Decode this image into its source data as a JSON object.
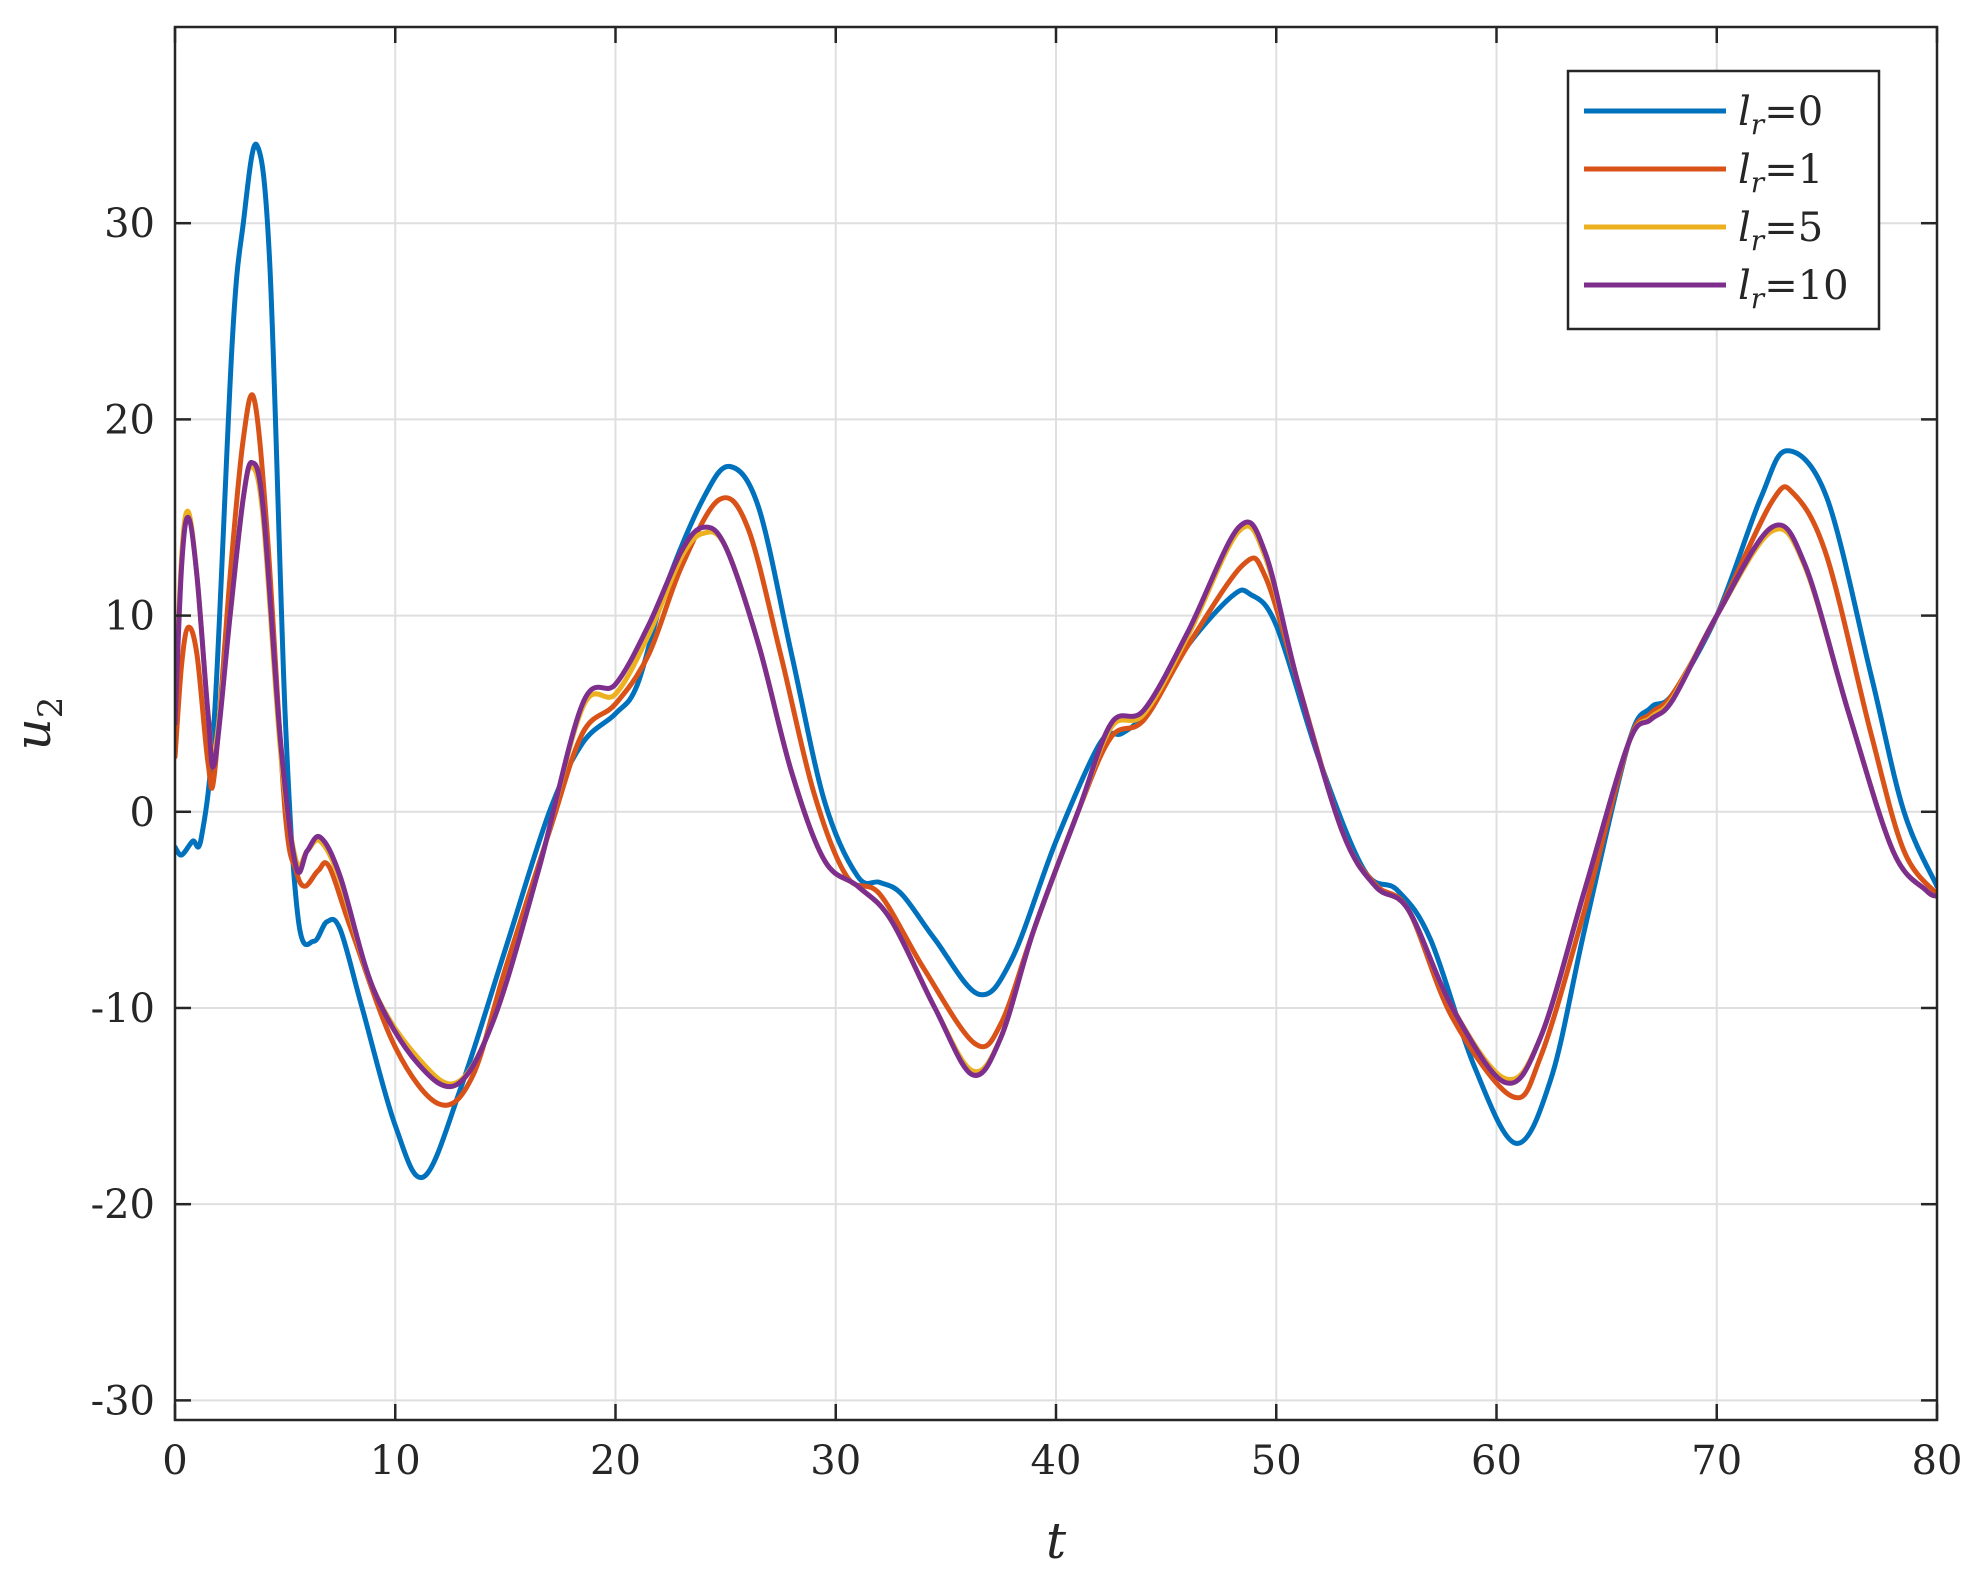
{
  "chart_data": {
    "type": "line",
    "xlabel": "t",
    "ylabel": "u",
    "ylabel_sub": "2",
    "xlim": [
      0,
      80
    ],
    "ylim": [
      -31,
      40
    ],
    "xticks": [
      0,
      10,
      20,
      30,
      40,
      50,
      60,
      70,
      80
    ],
    "yticks": [
      -30,
      -20,
      -10,
      0,
      10,
      20,
      30
    ],
    "xtick_labels": [
      "0",
      "10",
      "20",
      "30",
      "40",
      "50",
      "60",
      "70",
      "80"
    ],
    "ytick_labels": [
      "-30",
      "-20",
      "-10",
      "0",
      "10",
      "20",
      "30"
    ],
    "grid": true,
    "legend_position": "top-right",
    "series": [
      {
        "name": "=0",
        "name_var": "l",
        "name_sub": "r",
        "color": "#0072BD",
        "x": [
          0,
          0.3,
          0.8,
          1.2,
          1.8,
          2.6,
          3.1,
          3.7,
          4.3,
          5.0,
          5.6,
          6.3,
          6.9,
          7.5,
          8.5,
          10.0,
          11.3,
          13.0,
          15.0,
          17.0,
          18.5,
          20.0,
          21.0,
          22.3,
          24.0,
          25.2,
          26.5,
          28.0,
          29.5,
          31.0,
          32.0,
          33.0,
          34.5,
          36.5,
          38.0,
          40.0,
          42.0,
          43.0,
          44.0,
          46.0,
          48.0,
          48.8,
          50.0,
          52.0,
          54.0,
          55.5,
          57.0,
          59.0,
          60.9,
          62.5,
          64.0,
          66.0,
          67.0,
          68.0,
          70.0,
          72.0,
          73.2,
          75.0,
          77.0,
          78.5,
          80.0
        ],
        "y": [
          -1.8,
          -2.2,
          -1.5,
          -1.3,
          5,
          24,
          30,
          34,
          28,
          5,
          -5.5,
          -6.6,
          -5.6,
          -6,
          -10,
          -16,
          -18.6,
          -14,
          -7,
          0,
          3.5,
          5,
          6.5,
          11.5,
          16,
          17.6,
          15.5,
          8,
          0.5,
          -3.3,
          -3.6,
          -4.2,
          -6.5,
          -9.3,
          -7.5,
          -1.5,
          3.5,
          4,
          5,
          8.5,
          11,
          11.1,
          9.5,
          2.5,
          -3,
          -4,
          -6.5,
          -13,
          -16.9,
          -13.5,
          -6,
          3.5,
          5.3,
          6,
          10,
          16,
          18.4,
          16,
          7,
          0,
          -3.8
        ]
      },
      {
        "name": "=1",
        "name_var": "l",
        "name_sub": "r",
        "color": "#D95319",
        "x": [
          0,
          0.3,
          0.6,
          1.0,
          1.5,
          1.8,
          2.5,
          3.1,
          3.6,
          4.2,
          5.0,
          5.5,
          5.9,
          6.5,
          7.0,
          8.0,
          10.0,
          12.0,
          13.5,
          15.0,
          17.0,
          18.5,
          20.0,
          21.5,
          23.0,
          24.7,
          26.0,
          27.5,
          29.0,
          30.5,
          32.0,
          34.0,
          36.3,
          37.5,
          39.0,
          41.0,
          42.5,
          44.0,
          46.0,
          48.5,
          49.5,
          51.0,
          53.0,
          54.5,
          56.0,
          58.0,
          60.7,
          62.0,
          64.0,
          66.0,
          67.0,
          68.0,
          70.0,
          72.5,
          73.5,
          75.0,
          77.0,
          78.5,
          80.0
        ],
        "y": [
          2.8,
          7.5,
          9.4,
          8,
          2.5,
          2,
          12,
          19,
          21,
          14,
          0,
          -3,
          -3.8,
          -3,
          -2.8,
          -6,
          -12,
          -14.9,
          -13.5,
          -8,
          -1,
          4,
          5.5,
          8,
          12.5,
          15.9,
          14.5,
          8,
          1,
          -3.3,
          -4.2,
          -8,
          -11.8,
          -10.8,
          -6,
          0,
          3.8,
          4.7,
          8.5,
          12.6,
          12,
          6.5,
          -1,
          -3.7,
          -5,
          -10.5,
          -14.5,
          -12.5,
          -5,
          3.5,
          5,
          6,
          10,
          15.8,
          16.2,
          13,
          4,
          -2,
          -4.2
        ]
      },
      {
        "name": "=5",
        "name_var": "l",
        "name_sub": "r",
        "color": "#EDB120",
        "x": [
          0,
          0.3,
          0.6,
          1.0,
          1.5,
          1.8,
          2.5,
          3.1,
          3.5,
          4.0,
          4.8,
          5.5,
          6.0,
          6.6,
          7.5,
          9.0,
          11.0,
          12.8,
          14.5,
          16.5,
          18.5,
          20.0,
          21.5,
          23.0,
          24.0,
          25.0,
          26.5,
          28.0,
          29.5,
          31.0,
          32.5,
          34.5,
          36.2,
          37.5,
          39.0,
          41.0,
          42.5,
          44.0,
          46.0,
          48.3,
          49.5,
          51.0,
          53.0,
          54.5,
          56.0,
          58.0,
          60.4,
          62.0,
          64.0,
          66.0,
          67.0,
          68.0,
          70.0,
          72.5,
          74.0,
          76.0,
          78.0,
          79.5,
          80.0
        ],
        "y": [
          5,
          13,
          15.3,
          12,
          5,
          3,
          10,
          16,
          17.6,
          15,
          3,
          -2.5,
          -2,
          -1.5,
          -3.5,
          -9,
          -12.5,
          -13.8,
          -10.5,
          -3,
          5.3,
          6,
          9,
          13,
          14.2,
          13.5,
          8.5,
          2,
          -2.5,
          -3.8,
          -5.5,
          -10,
          -13.2,
          -11.5,
          -6,
          0,
          4.3,
          5,
          9,
          14.3,
          13,
          6.5,
          -1,
          -3.8,
          -5,
          -10,
          -13.6,
          -11.5,
          -4,
          3.5,
          4.8,
          5.8,
          10,
          14.3,
          12.5,
          5,
          -2,
          -4,
          -4.3
        ]
      },
      {
        "name": "=10",
        "name_var": "l",
        "name_sub": "r",
        "color": "#7E2F8E",
        "x": [
          0,
          0.3,
          0.6,
          1.0,
          1.5,
          1.8,
          2.5,
          3.1,
          3.5,
          4.0,
          4.8,
          5.5,
          6.0,
          6.6,
          7.5,
          9.0,
          11.0,
          12.8,
          14.5,
          16.5,
          18.5,
          20.0,
          21.5,
          23.0,
          24.0,
          25.0,
          26.5,
          28.0,
          29.5,
          31.0,
          32.5,
          34.5,
          36.2,
          37.5,
          39.0,
          41.0,
          42.5,
          44.0,
          46.0,
          48.3,
          49.5,
          51.0,
          53.0,
          54.5,
          56.0,
          58.0,
          60.4,
          62.0,
          64.0,
          66.0,
          67.0,
          68.0,
          70.0,
          72.5,
          74.0,
          76.0,
          78.0,
          79.5,
          80.0
        ],
        "y": [
          4.5,
          12.5,
          15,
          12,
          5,
          2.5,
          10,
          16,
          17.8,
          15.5,
          3.5,
          -2.8,
          -2,
          -1.3,
          -3.3,
          -9,
          -12.8,
          -13.9,
          -10.5,
          -3,
          5.5,
          6.5,
          9.5,
          13.3,
          14.5,
          13.5,
          8.5,
          2,
          -2.5,
          -3.8,
          -5.5,
          -10,
          -13.4,
          -11.5,
          -6,
          0,
          4.5,
          5.2,
          9.2,
          14.5,
          13.2,
          6.5,
          -1,
          -3.8,
          -5,
          -10,
          -13.8,
          -11.5,
          -4,
          3.5,
          4.7,
          5.7,
          10,
          14.5,
          12.6,
          5,
          -2,
          -4,
          -4.3
        ]
      }
    ]
  }
}
